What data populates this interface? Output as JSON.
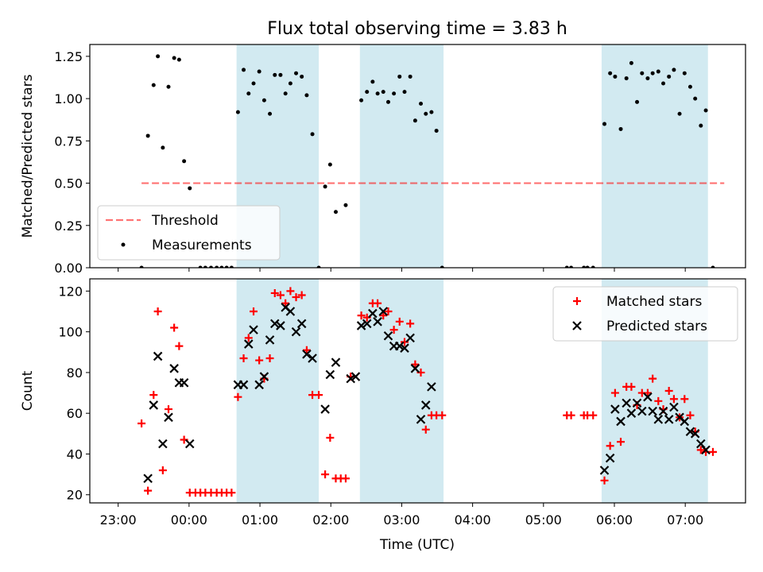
{
  "chart_data": {
    "title": "Flux total observing time = 3.83 h",
    "xlabel": "Time (UTC)",
    "x_ticks": [
      "23:00",
      "00:00",
      "01:00",
      "02:00",
      "03:00",
      "04:00",
      "05:00",
      "06:00",
      "07:00"
    ],
    "x_range_hours": [
      22.6,
      31.85
    ],
    "shaded_intervals": [
      [
        24.67,
        25.83
      ],
      [
        26.41,
        27.59
      ],
      [
        29.82,
        31.32
      ]
    ],
    "colors": {
      "shade": "#add8e6",
      "threshold": "#ff0000",
      "matched": "#ff0000",
      "predicted": "#000000",
      "measure": "#000000"
    },
    "panels": [
      {
        "type": "scatter",
        "ylabel": "Matched/Predicted stars",
        "ylim": [
          0,
          1.32
        ],
        "yticks": [
          "0.00",
          "0.25",
          "0.50",
          "0.75",
          "1.00",
          "1.25"
        ],
        "legend_position": "lower-left",
        "threshold": {
          "name": "Threshold",
          "y": 0.5,
          "x_range": [
            23.33,
            31.55
          ]
        },
        "series": [
          {
            "name": "Measurements",
            "points": [
              [
                23.33,
                0.0
              ],
              [
                23.42,
                0.78
              ],
              [
                23.5,
                1.08
              ],
              [
                23.56,
                1.25
              ],
              [
                23.63,
                0.71
              ],
              [
                23.71,
                1.07
              ],
              [
                23.79,
                1.24
              ],
              [
                23.86,
                1.23
              ],
              [
                23.93,
                0.63
              ],
              [
                24.01,
                0.47
              ],
              [
                24.16,
                0.0
              ],
              [
                24.23,
                0.0
              ],
              [
                24.31,
                0.0
              ],
              [
                24.39,
                0.0
              ],
              [
                24.46,
                0.0
              ],
              [
                24.53,
                0.0
              ],
              [
                24.6,
                0.0
              ],
              [
                24.69,
                0.92
              ],
              [
                24.77,
                1.17
              ],
              [
                24.84,
                1.03
              ],
              [
                24.91,
                1.09
              ],
              [
                24.99,
                1.16
              ],
              [
                25.06,
                0.99
              ],
              [
                25.14,
                0.91
              ],
              [
                25.21,
                1.14
              ],
              [
                25.29,
                1.14
              ],
              [
                25.36,
                1.03
              ],
              [
                25.43,
                1.09
              ],
              [
                25.51,
                1.15
              ],
              [
                25.59,
                1.13
              ],
              [
                25.66,
                1.02
              ],
              [
                25.74,
                0.79
              ],
              [
                25.83,
                0.0
              ],
              [
                25.92,
                0.48
              ],
              [
                25.99,
                0.61
              ],
              [
                26.07,
                0.33
              ],
              [
                26.21,
                0.37
              ],
              [
                26.43,
                0.99
              ],
              [
                26.51,
                1.04
              ],
              [
                26.59,
                1.1
              ],
              [
                26.66,
                1.03
              ],
              [
                26.74,
                1.04
              ],
              [
                26.81,
                0.98
              ],
              [
                26.89,
                1.03
              ],
              [
                26.97,
                1.13
              ],
              [
                27.04,
                1.04
              ],
              [
                27.12,
                1.13
              ],
              [
                27.19,
                0.87
              ],
              [
                27.27,
                0.97
              ],
              [
                27.34,
                0.91
              ],
              [
                27.42,
                0.92
              ],
              [
                27.49,
                0.81
              ],
              [
                27.57,
                0.0
              ],
              [
                29.33,
                0.0
              ],
              [
                29.39,
                0.0
              ],
              [
                29.57,
                0.0
              ],
              [
                29.62,
                0.0
              ],
              [
                29.7,
                0.0
              ],
              [
                29.86,
                0.85
              ],
              [
                29.94,
                1.15
              ],
              [
                30.01,
                1.13
              ],
              [
                30.09,
                0.82
              ],
              [
                30.17,
                1.12
              ],
              [
                30.24,
                1.21
              ],
              [
                30.32,
                0.98
              ],
              [
                30.39,
                1.15
              ],
              [
                30.47,
                1.12
              ],
              [
                30.54,
                1.15
              ],
              [
                30.62,
                1.16
              ],
              [
                30.69,
                1.09
              ],
              [
                30.77,
                1.13
              ],
              [
                30.84,
                1.17
              ],
              [
                30.92,
                0.91
              ],
              [
                30.99,
                1.15
              ],
              [
                31.07,
                1.07
              ],
              [
                31.14,
                1.0
              ],
              [
                31.22,
                0.84
              ],
              [
                31.29,
                0.93
              ],
              [
                31.39,
                0.0
              ]
            ]
          }
        ]
      },
      {
        "type": "scatter",
        "ylabel": "Count",
        "ylim": [
          16,
          126
        ],
        "yticks": [
          "20",
          "40",
          "60",
          "80",
          "100",
          "120"
        ],
        "legend_position": "upper-right",
        "series": [
          {
            "name": "Matched stars",
            "points": [
              [
                23.33,
                55
              ],
              [
                23.42,
                22
              ],
              [
                23.5,
                69
              ],
              [
                23.56,
                110
              ],
              [
                23.63,
                32
              ],
              [
                23.71,
                62
              ],
              [
                23.79,
                102
              ],
              [
                23.86,
                93
              ],
              [
                23.93,
                47
              ],
              [
                24.01,
                21
              ],
              [
                24.09,
                21
              ],
              [
                24.16,
                21
              ],
              [
                24.23,
                21
              ],
              [
                24.31,
                21
              ],
              [
                24.39,
                21
              ],
              [
                24.46,
                21
              ],
              [
                24.53,
                21
              ],
              [
                24.6,
                21
              ],
              [
                24.69,
                68
              ],
              [
                24.77,
                87
              ],
              [
                24.84,
                97
              ],
              [
                24.91,
                110
              ],
              [
                24.99,
                86
              ],
              [
                25.06,
                77
              ],
              [
                25.14,
                87
              ],
              [
                25.21,
                119
              ],
              [
                25.29,
                118
              ],
              [
                25.36,
                114
              ],
              [
                25.43,
                120
              ],
              [
                25.51,
                117
              ],
              [
                25.59,
                118
              ],
              [
                25.66,
                91
              ],
              [
                25.74,
                69
              ],
              [
                25.83,
                69
              ],
              [
                25.92,
                30
              ],
              [
                25.99,
                48
              ],
              [
                26.07,
                28
              ],
              [
                26.14,
                28
              ],
              [
                26.21,
                28
              ],
              [
                26.28,
                78
              ],
              [
                26.43,
                108
              ],
              [
                26.51,
                107
              ],
              [
                26.59,
                114
              ],
              [
                26.66,
                114
              ],
              [
                26.74,
                108
              ],
              [
                26.81,
                110
              ],
              [
                26.89,
                101
              ],
              [
                26.97,
                105
              ],
              [
                27.04,
                95
              ],
              [
                27.12,
                104
              ],
              [
                27.19,
                84
              ],
              [
                27.27,
                80
              ],
              [
                27.34,
                52
              ],
              [
                27.42,
                59
              ],
              [
                27.49,
                59
              ],
              [
                27.57,
                59
              ],
              [
                29.33,
                59
              ],
              [
                29.39,
                59
              ],
              [
                29.57,
                59
              ],
              [
                29.62,
                59
              ],
              [
                29.7,
                59
              ],
              [
                29.86,
                27
              ],
              [
                29.94,
                44
              ],
              [
                30.01,
                70
              ],
              [
                30.09,
                46
              ],
              [
                30.17,
                73
              ],
              [
                30.24,
                73
              ],
              [
                30.32,
                64
              ],
              [
                30.39,
                70
              ],
              [
                30.47,
                70
              ],
              [
                30.54,
                77
              ],
              [
                30.62,
                66
              ],
              [
                30.69,
                62
              ],
              [
                30.77,
                71
              ],
              [
                30.84,
                67
              ],
              [
                30.92,
                58
              ],
              [
                30.99,
                67
              ],
              [
                31.07,
                59
              ],
              [
                31.14,
                51
              ],
              [
                31.22,
                42
              ],
              [
                31.29,
                41
              ],
              [
                31.39,
                41
              ]
            ]
          },
          {
            "name": "Predicted stars",
            "points": [
              [
                23.42,
                28
              ],
              [
                23.5,
                64
              ],
              [
                23.56,
                88
              ],
              [
                23.63,
                45
              ],
              [
                23.71,
                58
              ],
              [
                23.79,
                82
              ],
              [
                23.86,
                75
              ],
              [
                23.93,
                75
              ],
              [
                24.01,
                45
              ],
              [
                24.69,
                74
              ],
              [
                24.77,
                74
              ],
              [
                24.84,
                94
              ],
              [
                24.91,
                101
              ],
              [
                24.99,
                74
              ],
              [
                25.06,
                78
              ],
              [
                25.14,
                96
              ],
              [
                25.21,
                104
              ],
              [
                25.29,
                103
              ],
              [
                25.36,
                112
              ],
              [
                25.43,
                110
              ],
              [
                25.51,
                100
              ],
              [
                25.59,
                104
              ],
              [
                25.66,
                89
              ],
              [
                25.74,
                87
              ],
              [
                25.92,
                62
              ],
              [
                25.99,
                79
              ],
              [
                26.07,
                85
              ],
              [
                26.28,
                77
              ],
              [
                26.35,
                78
              ],
              [
                26.43,
                103
              ],
              [
                26.51,
                104
              ],
              [
                26.59,
                109
              ],
              [
                26.66,
                105
              ],
              [
                26.74,
                110
              ],
              [
                26.81,
                98
              ],
              [
                26.89,
                93
              ],
              [
                26.97,
                93
              ],
              [
                27.04,
                92
              ],
              [
                27.12,
                97
              ],
              [
                27.19,
                82
              ],
              [
                27.27,
                57
              ],
              [
                27.34,
                64
              ],
              [
                27.42,
                73
              ],
              [
                29.86,
                32
              ],
              [
                29.94,
                38
              ],
              [
                30.01,
                62
              ],
              [
                30.09,
                56
              ],
              [
                30.17,
                65
              ],
              [
                30.24,
                60
              ],
              [
                30.32,
                65
              ],
              [
                30.39,
                61
              ],
              [
                30.47,
                68
              ],
              [
                30.54,
                61
              ],
              [
                30.62,
                57
              ],
              [
                30.69,
                61
              ],
              [
                30.77,
                57
              ],
              [
                30.84,
                63
              ],
              [
                30.92,
                58
              ],
              [
                30.99,
                56
              ],
              [
                31.07,
                51
              ],
              [
                31.14,
                50
              ],
              [
                31.22,
                45
              ],
              [
                31.29,
                42
              ]
            ]
          }
        ]
      }
    ]
  }
}
